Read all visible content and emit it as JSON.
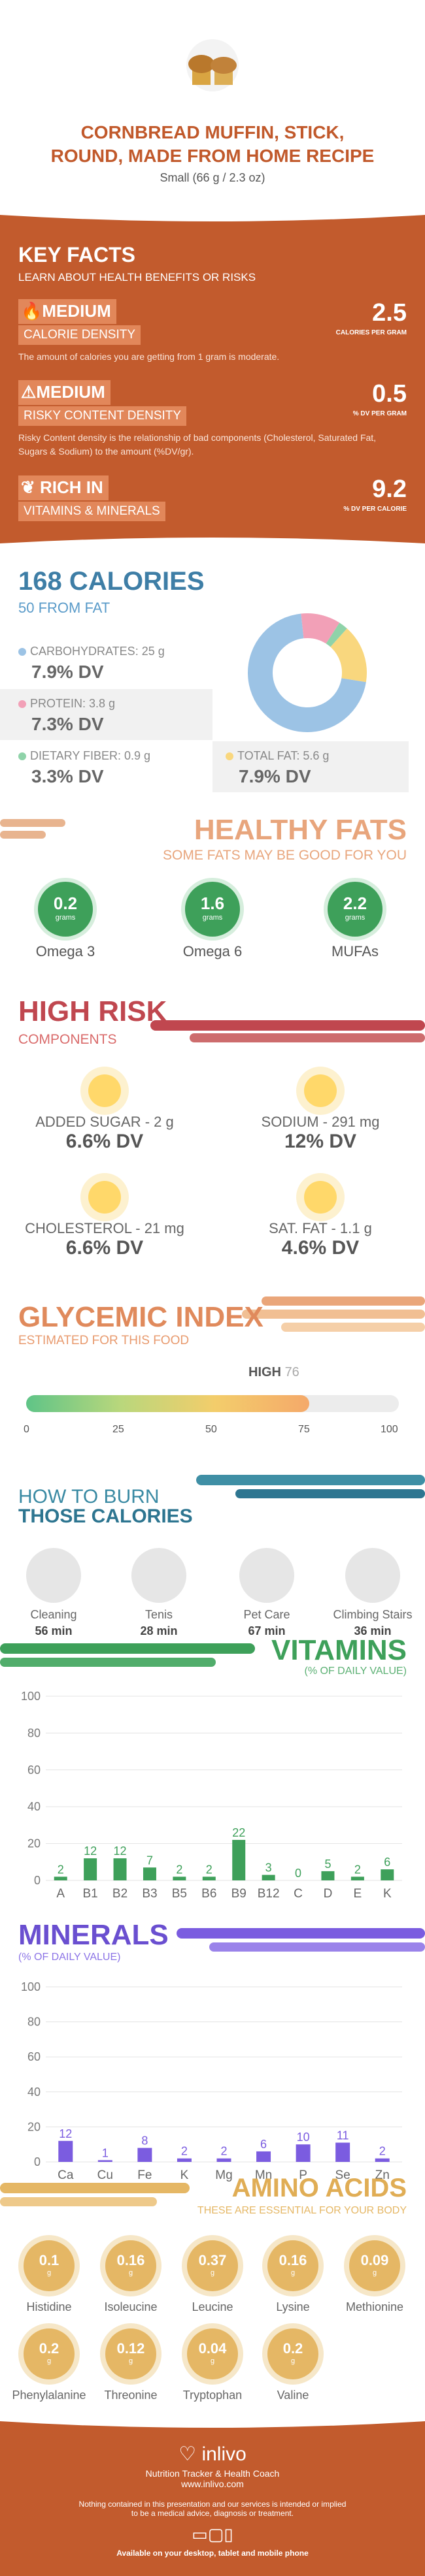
{
  "header": {
    "title_line1": "CORNBREAD MUFFIN, STICK,",
    "title_line2": "ROUND, MADE FROM HOME RECIPE",
    "serving": "Small (66 g / 2.3 oz)"
  },
  "key_facts": {
    "title": "KEY FACTS",
    "subtitle": "LEARN ABOUT HEALTH BENEFITS OR RISKS",
    "items": [
      {
        "level": "MEDIUM",
        "name": "CALORIE DENSITY",
        "value": "2.5",
        "unit": "CALORIES PER GRAM",
        "desc": "The amount of calories you are getting from 1 gram is moderate."
      },
      {
        "level": "MEDIUM",
        "name": "RISKY CONTENT DENSITY",
        "value": "0.5",
        "unit": "% DV PER GRAM",
        "desc": "Risky Content density is the relationship of bad components (Cholesterol, Saturated Fat, Sugars & Sodium) to the amount (%DV/gr)."
      },
      {
        "level": "RICH IN",
        "name": "VITAMINS & MINERALS",
        "value": "9.2",
        "unit": "% DV PER CALORIE",
        "desc": ""
      }
    ]
  },
  "calories": {
    "title": "168 CALORIES",
    "from_fat": "50 FROM FAT",
    "carbs_label": "CARBOHYDRATES: 25 g",
    "carbs_dv": "7.9% DV",
    "protein_label": "PROTEIN: 3.8 g",
    "protein_dv": "7.3% DV",
    "fiber_label": "DIETARY FIBER: 0.9 g",
    "fiber_dv": "3.3% DV",
    "fat_label": "TOTAL FAT: 5.6 g",
    "fat_dv": "7.9% DV",
    "colors": {
      "carbs": "#9cc3e5",
      "protein": "#f2a0b7",
      "fiber": "#8fd3a9",
      "fat": "#f9d77e"
    }
  },
  "chart_data": [
    {
      "type": "pie",
      "categories": [
        "Carbohydrates",
        "Protein",
        "Dietary Fiber",
        "Total Fat"
      ],
      "values": [
        25,
        3.8,
        0.9,
        5.6
      ],
      "title": ""
    },
    {
      "type": "bar",
      "title": "VITAMINS",
      "categories": [
        "A",
        "B1",
        "B2",
        "B3",
        "B5",
        "B6",
        "B9",
        "B12",
        "C",
        "D",
        "E",
        "K"
      ],
      "values": [
        2,
        12,
        12,
        7,
        2,
        2,
        22,
        3,
        0,
        5,
        2,
        6
      ],
      "ylim": [
        0,
        100
      ],
      "yticks": [
        0,
        20,
        40,
        60,
        80,
        100
      ],
      "color": "#3ea05a"
    },
    {
      "type": "bar",
      "title": "MINERALS",
      "categories": [
        "Ca",
        "Cu",
        "Fe",
        "K",
        "Mg",
        "Mn",
        "P",
        "Se",
        "Zn"
      ],
      "values": [
        12,
        1,
        8,
        2,
        2,
        6,
        10,
        11,
        2
      ],
      "ylim": [
        0,
        100
      ],
      "yticks": [
        0,
        20,
        40,
        60,
        80,
        100
      ],
      "color": "#7b5ce0"
    }
  ],
  "healthy_fats": {
    "title": "HEALTHY FATS",
    "subtitle": "SOME FATS MAY BE GOOD FOR YOU",
    "items": [
      {
        "value": "0.2",
        "unit": "grams",
        "label": "Omega 3"
      },
      {
        "value": "1.6",
        "unit": "grams",
        "label": "Omega 6"
      },
      {
        "value": "2.2",
        "unit": "grams",
        "label": "MUFAs"
      }
    ]
  },
  "high_risk": {
    "title": "HIGH RISK",
    "subtitle": "COMPONENTS",
    "items": [
      {
        "label": "ADDED SUGAR - 2 g",
        "dv": "6.6% DV"
      },
      {
        "label": "SODIUM - 291 mg",
        "dv": "12% DV"
      },
      {
        "label": "CHOLESTEROL - 21 mg",
        "dv": "6.6% DV"
      },
      {
        "label": "SAT. FAT - 1.1 g",
        "dv": "4.6% DV"
      }
    ]
  },
  "glycemic": {
    "title": "GLYCEMIC INDEX",
    "subtitle": "ESTIMATED FOR THIS FOOD",
    "level": "HIGH",
    "value": "76",
    "value_num": 76,
    "ticks": [
      "0",
      "25",
      "50",
      "75",
      "100"
    ]
  },
  "burn": {
    "title1": "HOW TO BURN",
    "title2": "THOSE CALORIES",
    "items": [
      {
        "label": "Cleaning",
        "time": "56 min"
      },
      {
        "label": "Tenis",
        "time": "28 min"
      },
      {
        "label": "Pet Care",
        "time": "67 min"
      },
      {
        "label": "Climbing Stairs",
        "time": "36 min"
      }
    ]
  },
  "vitamins": {
    "title": "VITAMINS",
    "subtitle": "(% OF DAILY VALUE)"
  },
  "minerals": {
    "title": "MINERALS",
    "subtitle": "(% OF DAILY VALUE)"
  },
  "amino": {
    "title": "AMINO ACIDS",
    "subtitle": "THESE ARE ESSENTIAL FOR YOUR BODY",
    "items": [
      {
        "value": "0.1",
        "unit": "g",
        "label": "Histidine"
      },
      {
        "value": "0.16",
        "unit": "g",
        "label": "Isoleucine"
      },
      {
        "value": "0.37",
        "unit": "g",
        "label": "Leucine"
      },
      {
        "value": "0.16",
        "unit": "g",
        "label": "Lysine"
      },
      {
        "value": "0.09",
        "unit": "g",
        "label": "Methionine"
      },
      {
        "value": "0.2",
        "unit": "g",
        "label": "Phenylalanine"
      },
      {
        "value": "0.12",
        "unit": "g",
        "label": "Threonine"
      },
      {
        "value": "0.04",
        "unit": "g",
        "label": "Tryptophan"
      },
      {
        "value": "0.2",
        "unit": "g",
        "label": "Valine"
      }
    ]
  },
  "footer": {
    "brand": "inlivo",
    "tagline": "Nutrition Tracker & Health Coach",
    "url": "www.inlivo.com",
    "disclaimer1": "Nothing contained in this presentation and our services is intended or implied",
    "disclaimer2": "to be a medical advice, diagnosis or treatment.",
    "devices": "Available on your desktop, tablet and mobile phone"
  }
}
